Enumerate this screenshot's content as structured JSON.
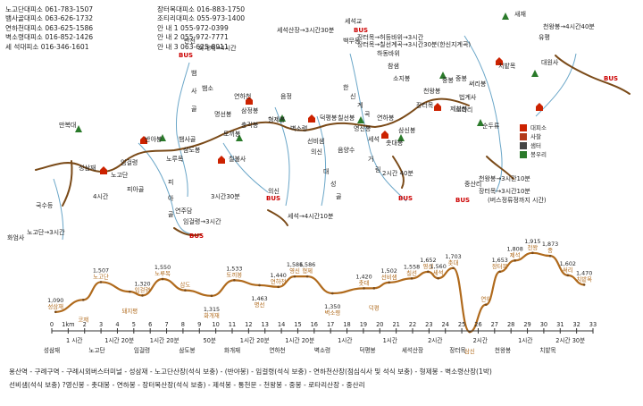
{
  "contacts": [
    {
      "a": "노고단대피소 061-783-1507",
      "b": "장터목대피소 016-883-1750"
    },
    {
      "a": "뱀사골대피소 063-626-1732",
      "b": "조티리대피소 055-973-1400"
    },
    {
      "a": "연하천대피소 063-625-1586",
      "b": "안 내 1 055-972-0399"
    },
    {
      "a": "벽소령대피소 016-852-1426",
      "b": "안 내 2 055-972-7771"
    },
    {
      "a": "세 석대피소 016-346-1601",
      "b": "안 내 3 063-625-8911"
    }
  ],
  "legend": [
    {
      "label": "대피소",
      "color": "#cc2200"
    },
    {
      "label": "사찰",
      "color": "#b33a1a"
    },
    {
      "label": "샘터",
      "color": "#444444"
    },
    {
      "label": "봉우리",
      "color": "#2a7a2a"
    }
  ],
  "map_labels": [
    "반선",
    "화개재→4시간",
    "BUS",
    "뱀",
    "사",
    "골",
    "뱀소",
    "연하천",
    "삼정봉",
    "형제봉",
    "토끼봉",
    "명선봉",
    "충각봉",
    "벽소령",
    "음정",
    "의신",
    "만복대",
    "성삼재",
    "노고단",
    "임걸령",
    "반야봉",
    "피아골",
    "피",
    "아",
    "골",
    "연주담",
    "임걸령→3시간",
    "BUS",
    "삼도봉",
    "뱀사골",
    "노루목",
    "칠불사",
    "화엄사",
    "노고단→3시간",
    "4시간",
    "국수등",
    "3시간30분",
    "의신",
    "BUS",
    "세석→4시간10분",
    "선비샘",
    "대",
    "성",
    "골",
    "덕평봉",
    "칠선봉",
    "영신봉",
    "세석",
    "촛대봉",
    "연하봉",
    "삼신봉",
    "장터목",
    "천왕봉",
    "제석봉",
    "법계사",
    "로타리",
    "중봉",
    "써리봉",
    "치밭목",
    "BUS",
    "중봉",
    "유평",
    "대원사",
    "천왕봉→4시간40분",
    "새재",
    "순두류",
    "중산리",
    "천왕봉→3시간10분",
    "장터목→3시간10분",
    "(버스정류정까지 시간)",
    "BUS",
    "세석산장→3시간30분",
    "BUS",
    "장터목→허등바위→3시간",
    "장터목→칠선계곡→3시간30분(한신지계곡)",
    "백무동",
    "하동바위",
    "참샘",
    "소지봉",
    "한",
    "신",
    "계",
    "곡",
    "음양수",
    "거",
    "림",
    "2시간 40분",
    "BUS",
    "세석교"
  ],
  "profile": {
    "peaks": [
      {
        "name": "성삼재",
        "elev": "1,090",
        "km": 0.3
      },
      {
        "name": "코재",
        "elev": "",
        "km": 2.5
      },
      {
        "name": "노고단",
        "elev": "1,507",
        "km": 3.9
      },
      {
        "name": "돼지평",
        "elev": "",
        "km": 6.2
      },
      {
        "name": "임걸령",
        "elev": "1,320",
        "km": 7.2
      },
      {
        "name": "노루목",
        "elev": "1,550",
        "km": 8.8
      },
      {
        "name": "삼도",
        "elev": "",
        "km": 10.6
      },
      {
        "name": "화개재",
        "elev": "1,315",
        "km": 12.7
      },
      {
        "name": "토끼봉",
        "elev": "1,533",
        "km": 14.5
      },
      {
        "name": "명선",
        "elev": "1,463",
        "km": 16.5
      },
      {
        "name": "연하천",
        "elev": "1,440",
        "km": 18.0
      },
      {
        "name": "영신",
        "elev": "1,586",
        "km": 19.3
      },
      {
        "name": "형제",
        "elev": "1,586",
        "km": 20.3
      },
      {
        "name": "벽소령",
        "elev": "1,350",
        "km": 22.3
      },
      {
        "name": "촛대",
        "elev": "1,420",
        "km": 24.8
      },
      {
        "name": "덕평",
        "elev": "",
        "km": 25.6
      },
      {
        "name": "선비샘",
        "elev": "1,502",
        "km": 26.8
      },
      {
        "name": "칠선",
        "elev": "1,558",
        "km": 28.6
      },
      {
        "name": "영신",
        "elev": "1,652",
        "km": 29.9
      },
      {
        "name": "세석",
        "elev": "1,560",
        "km": 30.7
      },
      {
        "name": "촛대",
        "elev": "1,703",
        "km": 31.9
      },
      {
        "name": "삼신",
        "elev": "",
        "km": 33.2
      },
      {
        "name": "연하",
        "elev": "",
        "km": 34.5
      },
      {
        "name": "장터목",
        "elev": "1,653",
        "km": 35.6
      },
      {
        "name": "제석",
        "elev": "1,808",
        "km": 36.8
      },
      {
        "name": "천왕",
        "elev": "1,915",
        "km": 38.2
      },
      {
        "name": "중",
        "elev": "1,873",
        "km": 39.6
      },
      {
        "name": "써리",
        "elev": "1,602",
        "km": 41.0
      },
      {
        "name": "치밭목",
        "elev": "1,470",
        "km": 42.3
      }
    ],
    "axis_ticks": [
      "0",
      "1km",
      "2",
      "3",
      "4",
      "5",
      "6",
      "7",
      "8",
      "9",
      "10",
      "11",
      "12",
      "13",
      "14",
      "15",
      "16",
      "17",
      "18",
      "19",
      "20",
      "21",
      "22",
      "23",
      "24",
      "25",
      "26",
      "27",
      "28",
      "29",
      "30",
      "31",
      "32",
      "33"
    ],
    "segments": [
      {
        "time": "1 시간",
        "label": "성삼재"
      },
      {
        "time": "1시간 20분",
        "label": "노고단"
      },
      {
        "time": "1시간 20분",
        "label": "임걸령"
      },
      {
        "time": "50분",
        "label": "삼도봉"
      },
      {
        "time": "1시간 20분",
        "label": "화개재"
      },
      {
        "time": "1시간 20분",
        "label": "연하천"
      },
      {
        "time": "1시간",
        "label": "벽소령"
      },
      {
        "time": "1시간",
        "label": "덕평봉"
      },
      {
        "time": "2시간",
        "label": "세석산장"
      },
      {
        "time": "2시간",
        "label": "장터목"
      },
      {
        "time": "1시간",
        "label": "천왕봉"
      },
      {
        "time": "2시간 30분",
        "label": "치밭목"
      }
    ]
  },
  "route_text": [
    "용산역 - 구례구역 - 구례시외버스터미널 - 성삼재 - 노고단산장(석식 보충) - (반야봉) - 임걸령(석식 보충) - 연하천산장(점심식사 및 석식 보충) - 형제봉 - 벽소령산장(1박)",
    "선비샘(석식 보충) ?영신봉 - 촛대봉 - 연하봉 - 장터목산장(석식 보충) - 제석봉 - 통천문 - 천왕봉 - 중봉 - 로타리산장 - 중산리"
  ]
}
